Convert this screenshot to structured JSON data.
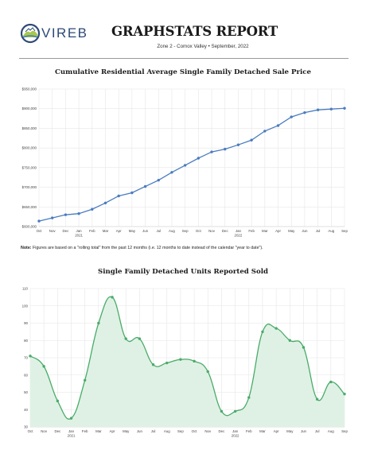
{
  "header": {
    "logo_text": "VIREB",
    "report_title": "GRAPHSTATS REPORT",
    "subtitle": "Zone 2 - Comox Valley • September, 2022"
  },
  "note": {
    "label": "Note:",
    "text": "Figures are based on a \"rolling total\" from the past 12 months (i.e. 12 months to date instead of the calendar \"year to date\")."
  },
  "colors": {
    "price_line": "#4a7cc0",
    "units_line": "#4aab6a",
    "units_fill": "#dff1e4",
    "grid": "#e6e6e6"
  },
  "chart_data": [
    {
      "type": "line",
      "title": "Cumulative Residential Average Single Family Detached Sale Price",
      "categories": [
        "Oct",
        "Nov",
        "Dec",
        "Jan",
        "Feb",
        "Mar",
        "Apr",
        "May",
        "Jun",
        "Jul",
        "Aug",
        "Sep",
        "Oct",
        "Nov",
        "Dec",
        "Jan",
        "Feb",
        "Mar",
        "Apr",
        "May",
        "Jun",
        "Jul",
        "Aug",
        "Sep"
      ],
      "year_labels": [
        {
          "index": 3,
          "label": "2021"
        },
        {
          "index": 15,
          "label": "2022"
        }
      ],
      "y_ticks": [
        "$600,000",
        "$650,000",
        "$700,000",
        "$750,000",
        "$800,000",
        "$850,000",
        "$900,000",
        "$950,000"
      ],
      "ylim": [
        600000,
        950000
      ],
      "grid": true,
      "series": [
        {
          "values": [
            614000,
            622000,
            630000,
            633000,
            644000,
            660000,
            678000,
            686000,
            702000,
            718000,
            738000,
            756000,
            774000,
            790000,
            797000,
            808000,
            820000,
            843000,
            857000,
            879000,
            890000,
            897000,
            899000,
            901000
          ]
        }
      ]
    },
    {
      "type": "area",
      "title": "Single Family Detached Units Reported Sold",
      "categories": [
        "Oct",
        "Nov",
        "Dec",
        "Jan",
        "Feb",
        "Mar",
        "Apr",
        "May",
        "Jun",
        "Jul",
        "Aug",
        "Sep",
        "Oct",
        "Nov",
        "Dec",
        "Jan",
        "Feb",
        "Mar",
        "Apr",
        "May",
        "Jun",
        "Jul",
        "Aug",
        "Sep"
      ],
      "year_labels": [
        {
          "index": 3,
          "label": "2021"
        },
        {
          "index": 15,
          "label": "2022"
        }
      ],
      "y_ticks": [
        "30",
        "40",
        "50",
        "60",
        "70",
        "80",
        "90",
        "100",
        "110"
      ],
      "ylim": [
        30,
        110
      ],
      "grid": true,
      "series": [
        {
          "values": [
            71,
            65,
            45,
            35,
            57,
            90,
            105,
            81,
            81,
            66,
            67,
            69,
            68,
            62,
            39,
            39,
            47,
            85,
            87,
            80,
            76,
            46,
            56,
            49
          ]
        }
      ]
    }
  ]
}
